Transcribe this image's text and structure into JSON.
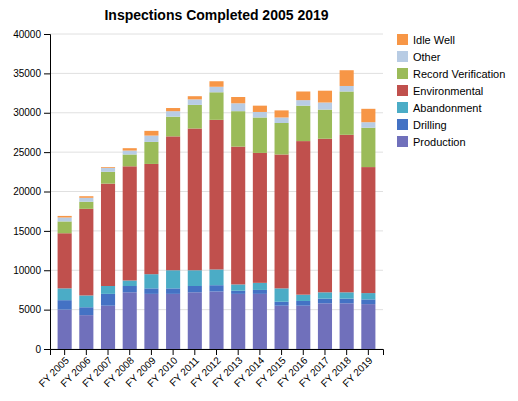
{
  "chart_data": {
    "type": "bar",
    "stacked": true,
    "title": "Inspections Completed 2005 2019",
    "categories": [
      "FY 2005",
      "FY 2006",
      "FY 2007",
      "FY 2008",
      "FY 2009",
      "FY 2010",
      "FY 2011",
      "FY 2012",
      "FY 2013",
      "FY 2014",
      "FY 2015",
      "FY 2016",
      "FY 2017",
      "FY 2018",
      "FY 2019"
    ],
    "series": [
      {
        "name": "Production",
        "color": "#7070BB",
        "values": [
          5000,
          4300,
          5500,
          7200,
          7000,
          7000,
          7200,
          7300,
          7000,
          7000,
          5500,
          5500,
          5800,
          5800,
          5700
        ]
      },
      {
        "name": "Drilling",
        "color": "#4472C4",
        "values": [
          1200,
          1000,
          1500,
          800,
          700,
          700,
          800,
          800,
          400,
          500,
          500,
          600,
          600,
          600,
          600
        ]
      },
      {
        "name": "Abandonment",
        "color": "#4BACC6",
        "values": [
          1500,
          1500,
          1000,
          700,
          1800,
          2300,
          2000,
          2000,
          800,
          900,
          1700,
          800,
          800,
          800,
          800
        ]
      },
      {
        "name": "Environmental",
        "color": "#C0504D",
        "values": [
          7000,
          11000,
          13000,
          14500,
          14000,
          17000,
          18000,
          19000,
          17500,
          16500,
          17000,
          19500,
          19500,
          20000,
          16000
        ]
      },
      {
        "name": "Record Verification",
        "color": "#9BBB59",
        "values": [
          1500,
          900,
          1500,
          1500,
          2800,
          2500,
          3000,
          3500,
          4500,
          4500,
          4000,
          4500,
          3700,
          5500,
          5000
        ]
      },
      {
        "name": "Other",
        "color": "#B8CCE4",
        "values": [
          500,
          500,
          500,
          500,
          800,
          700,
          700,
          700,
          1000,
          700,
          700,
          700,
          900,
          700,
          700
        ]
      },
      {
        "name": "Idle Well",
        "color": "#F79646",
        "values": [
          200,
          200,
          100,
          300,
          600,
          400,
          400,
          700,
          800,
          800,
          900,
          1100,
          1500,
          2000,
          1700
        ]
      }
    ],
    "ylim": [
      0,
      40000
    ],
    "yticks": [
      0,
      5000,
      10000,
      15000,
      20000,
      25000,
      30000,
      35000,
      40000
    ],
    "grid": true,
    "legend": "upper right"
  }
}
